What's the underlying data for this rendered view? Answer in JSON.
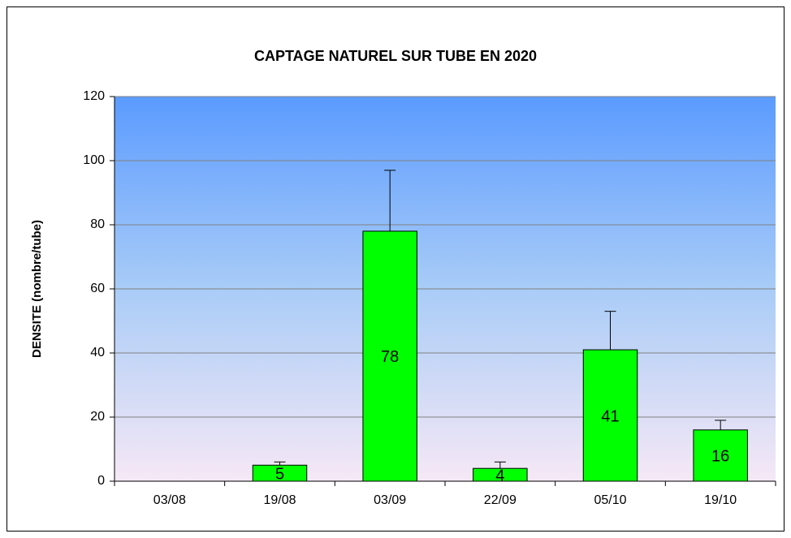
{
  "chart_data": {
    "type": "bar",
    "title": "CAPTAGE  NATUREL  SUR TUBE  EN 2020",
    "y_label": "DENSITE  (nombre/tube)",
    "categories": [
      "03/08",
      "19/08",
      "03/09",
      "22/09",
      "05/10",
      "19/10"
    ],
    "values": [
      0,
      5,
      78,
      4,
      41,
      16
    ],
    "value_labels": [
      null,
      "5",
      "78",
      "4",
      "41",
      "16"
    ],
    "errors": [
      null,
      1,
      19,
      2,
      12,
      3
    ],
    "color": "#00ff00",
    "ylim": [
      0,
      120
    ],
    "yticks": [
      0,
      20,
      40,
      60,
      80,
      100,
      120
    ],
    "grid": true
  }
}
